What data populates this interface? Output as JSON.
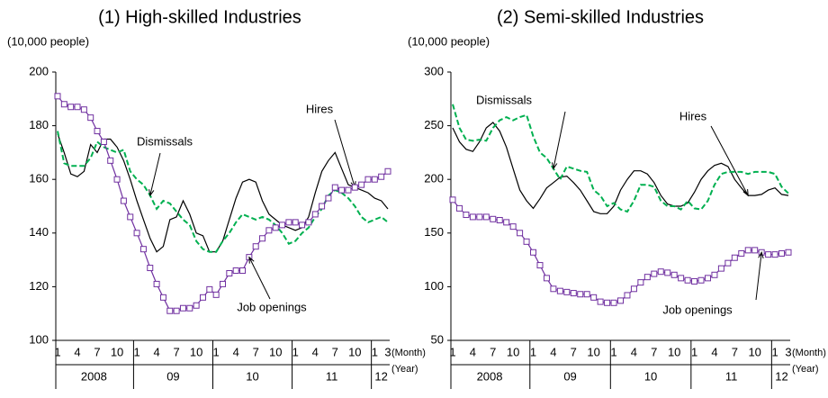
{
  "chart_data": [
    {
      "type": "line",
      "title": "(1) High-skilled Industries",
      "y_label": "(10,000 people)",
      "x_label": "(Month)",
      "x2_label": "(Year)",
      "categories": [
        "1",
        null,
        null,
        "4",
        null,
        null,
        "7",
        null,
        null,
        "10",
        null,
        null,
        "1",
        null,
        null,
        "4",
        null,
        null,
        "7",
        null,
        null,
        "10",
        null,
        null,
        "1",
        null,
        null,
        "4",
        null,
        null,
        "7",
        null,
        null,
        "10",
        null,
        null,
        "1",
        null,
        null,
        "4",
        null,
        null,
        "7",
        null,
        null,
        "10",
        null,
        null,
        "1",
        null,
        "3"
      ],
      "years": [
        "2008",
        "09",
        "10",
        "11",
        "12"
      ],
      "ylim": [
        100,
        200
      ],
      "yticks": [
        100,
        120,
        140,
        160,
        180,
        200
      ],
      "series": [
        {
          "name": "Hires",
          "color": "#000000",
          "style": "solid",
          "values": [
            177,
            170,
            162,
            161,
            163,
            173,
            170,
            175,
            175,
            172,
            167,
            160,
            152,
            145,
            138,
            133,
            135,
            145,
            146,
            152,
            147,
            140,
            139,
            133,
            133,
            137,
            145,
            153,
            159,
            160,
            159,
            152,
            147,
            145,
            143,
            142,
            141,
            142,
            146,
            155,
            163,
            167,
            170,
            164,
            158,
            157,
            156,
            155,
            153,
            152,
            149
          ]
        },
        {
          "name": "Dismissals",
          "color": "#00b050",
          "style": "dashed",
          "values": [
            178,
            166,
            165,
            165,
            165,
            168,
            174,
            172,
            171,
            170,
            171,
            163,
            160,
            158,
            154,
            149,
            152,
            151,
            148,
            145,
            143,
            137,
            134,
            133,
            133,
            137,
            140,
            144,
            147,
            146,
            145,
            146,
            145,
            143,
            140,
            136,
            137,
            140,
            142,
            146,
            149,
            154,
            156,
            155,
            153,
            150,
            146,
            144,
            145,
            146,
            144
          ]
        },
        {
          "name": "Job openings",
          "color": "#7030a0",
          "style": "solid",
          "marker": "square",
          "values": [
            191,
            188,
            187,
            187,
            186,
            183,
            178,
            174,
            167,
            160,
            152,
            146,
            140,
            134,
            127,
            121,
            116,
            111,
            111,
            112,
            112,
            113,
            116,
            119,
            117,
            121,
            125,
            126,
            126,
            131,
            135,
            138,
            141,
            142,
            143,
            144,
            144,
            143,
            144,
            147,
            150,
            153,
            157,
            156,
            156,
            157,
            158,
            160,
            160,
            161,
            163
          ]
        }
      ]
    },
    {
      "type": "line",
      "title": "(2) Semi-skilled Industries",
      "y_label": "(10,000 people)",
      "x_label": "(Month)",
      "x2_label": "(Year)",
      "categories": [
        "1",
        null,
        null,
        "4",
        null,
        null,
        "7",
        null,
        null,
        "10",
        null,
        null,
        "1",
        null,
        null,
        "4",
        null,
        null,
        "7",
        null,
        null,
        "10",
        null,
        null,
        "1",
        null,
        null,
        "4",
        null,
        null,
        "7",
        null,
        null,
        "10",
        null,
        null,
        "1",
        null,
        null,
        "4",
        null,
        null,
        "7",
        null,
        null,
        "10",
        null,
        null,
        "1",
        null,
        "3"
      ],
      "years": [
        "2008",
        "09",
        "10",
        "11",
        "12"
      ],
      "ylim": [
        50,
        300
      ],
      "yticks": [
        50,
        100,
        150,
        200,
        250,
        300
      ],
      "series": [
        {
          "name": "Hires",
          "color": "#000000",
          "style": "solid",
          "values": [
            248,
            235,
            228,
            226,
            235,
            248,
            253,
            245,
            230,
            210,
            190,
            180,
            173,
            182,
            192,
            197,
            202,
            203,
            197,
            190,
            180,
            170,
            168,
            168,
            175,
            190,
            200,
            208,
            208,
            205,
            197,
            185,
            177,
            175,
            175,
            178,
            188,
            200,
            208,
            213,
            215,
            212,
            200,
            192,
            185,
            185,
            186,
            190,
            192,
            186,
            185
          ]
        },
        {
          "name": "Dismissals",
          "color": "#00b050",
          "style": "dashed",
          "values": [
            270,
            248,
            237,
            236,
            237,
            236,
            248,
            255,
            258,
            255,
            258,
            260,
            240,
            225,
            220,
            210,
            200,
            212,
            210,
            208,
            207,
            190,
            185,
            175,
            178,
            172,
            170,
            180,
            195,
            195,
            193,
            180,
            175,
            175,
            172,
            180,
            173,
            172,
            180,
            195,
            205,
            207,
            207,
            207,
            205,
            207,
            207,
            207,
            205,
            193,
            187
          ]
        },
        {
          "name": "Job openings",
          "color": "#7030a0",
          "style": "solid",
          "marker": "square",
          "values": [
            181,
            173,
            167,
            165,
            165,
            165,
            163,
            162,
            160,
            156,
            150,
            142,
            132,
            120,
            108,
            98,
            96,
            95,
            94,
            93,
            93,
            90,
            86,
            85,
            85,
            87,
            92,
            98,
            104,
            109,
            112,
            114,
            113,
            111,
            108,
            106,
            105,
            106,
            108,
            111,
            117,
            122,
            127,
            131,
            134,
            134,
            132,
            130,
            130,
            131,
            132
          ]
        }
      ]
    }
  ]
}
